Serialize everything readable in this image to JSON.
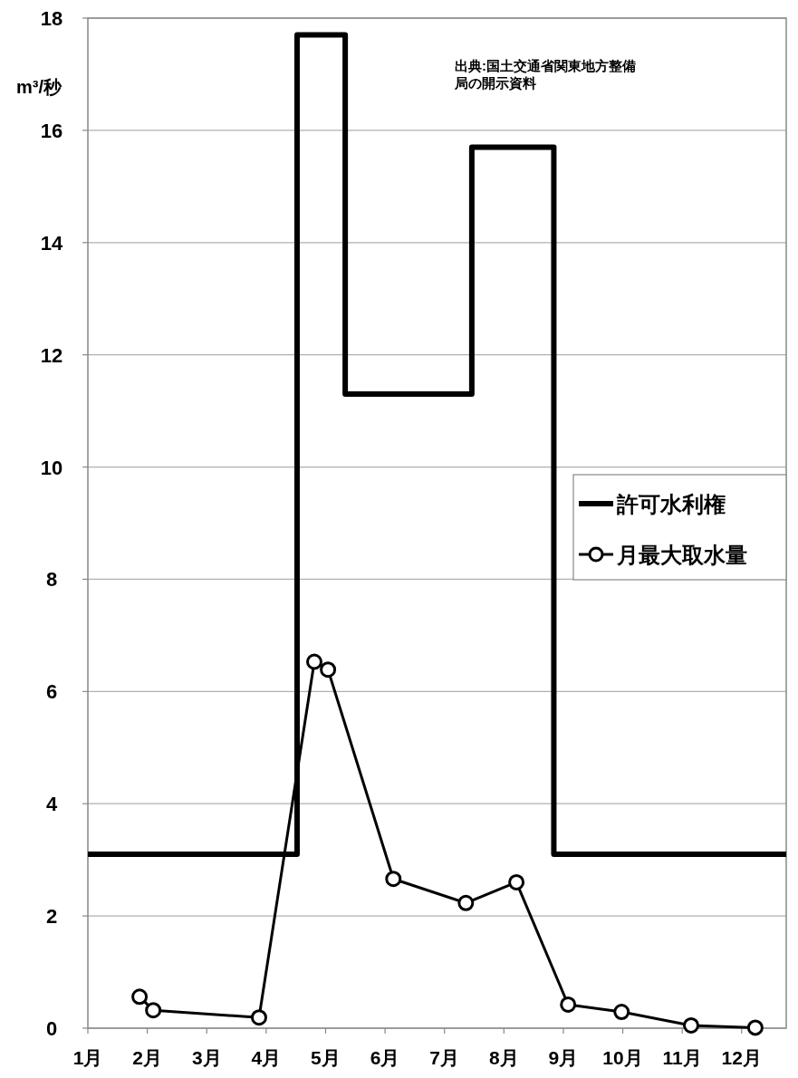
{
  "chart_data": {
    "type": "line",
    "ylabel": "m³/秒",
    "annotations": [
      "出典:国土交通省関東地方整備局の開示資料"
    ],
    "xlim": [
      1,
      12.75
    ],
    "xticks": [
      {
        "value": 1,
        "label": "1月"
      },
      {
        "value": 2,
        "label": "2月"
      },
      {
        "value": 3,
        "label": "3月"
      },
      {
        "value": 4,
        "label": "4月"
      },
      {
        "value": 5,
        "label": "5月"
      },
      {
        "value": 6,
        "label": "6月"
      },
      {
        "value": 7,
        "label": "7月"
      },
      {
        "value": 8,
        "label": "8月"
      },
      {
        "value": 9,
        "label": "9月"
      },
      {
        "value": 10,
        "label": "10月"
      },
      {
        "value": 11,
        "label": "11月"
      },
      {
        "value": 12,
        "label": "12月"
      }
    ],
    "ylim": [
      0,
      18
    ],
    "yticks": [
      0,
      2,
      4,
      6,
      8,
      10,
      12,
      14,
      16,
      18
    ],
    "grid": "y",
    "legend": "right",
    "series": [
      {
        "name": "許可水利権",
        "color": "#000000",
        "marker": "none",
        "x": [
          1,
          4.52,
          4.52,
          5.33,
          5.33,
          7.46,
          7.46,
          8.84,
          8.84,
          12.75
        ],
        "values": [
          3.1,
          3.1,
          17.7,
          17.7,
          11.3,
          11.3,
          15.7,
          15.7,
          3.1,
          3.1
        ]
      },
      {
        "name": "月最大取水量",
        "color": "#000000",
        "marker": "circle",
        "x": [
          1.87,
          2.1,
          3.88,
          4.81,
          5.04,
          6.14,
          7.36,
          8.21,
          9.08,
          9.98,
          11.15,
          12.23
        ],
        "values": [
          0.56,
          0.32,
          0.19,
          6.53,
          6.39,
          2.66,
          2.23,
          2.6,
          0.42,
          0.29,
          0.05,
          0.01
        ]
      }
    ]
  }
}
